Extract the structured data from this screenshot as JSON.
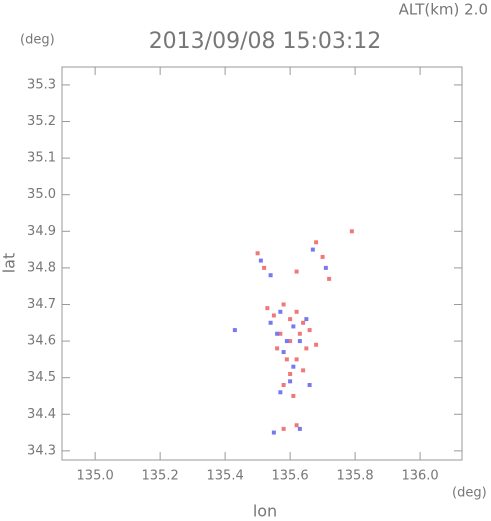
{
  "chart_data": {
    "type": "scatter",
    "title": "2013/09/08 15:03:12",
    "subtitle": "ALT(km) 2.0",
    "y_unit": "(deg)",
    "x_unit": "(deg)",
    "xlabel": "lon",
    "ylabel": "lat",
    "xlim": [
      134.898,
      136.129
    ],
    "ylim": [
      34.275,
      35.349
    ],
    "xticks": [
      {
        "value": 135,
        "label": "135.0"
      },
      135.2,
      135.4,
      135.6,
      135.8,
      {
        "value": 136,
        "label": "136.0"
      }
    ],
    "yticks": [
      34.3,
      34.4,
      34.5,
      34.6,
      34.7,
      34.8,
      34.9,
      {
        "value": 35,
        "label": "35.0"
      },
      35.1,
      35.2,
      35.3
    ],
    "series": [
      {
        "color": "#f07878",
        "x": [
          135.5,
          135.52,
          135.62,
          135.68,
          135.7,
          135.72,
          135.79,
          135.53,
          135.55,
          135.58,
          135.6,
          135.62,
          135.64,
          135.66,
          135.57,
          135.6,
          135.63,
          135.65,
          135.56,
          135.59,
          135.62,
          135.6,
          135.64,
          135.58,
          135.61,
          135.58,
          135.62,
          135.68
        ],
        "y": [
          34.84,
          34.8,
          34.79,
          34.87,
          34.83,
          34.77,
          34.9,
          34.69,
          34.67,
          34.7,
          34.66,
          34.68,
          34.65,
          34.63,
          34.62,
          34.6,
          34.62,
          34.58,
          34.58,
          34.55,
          34.55,
          34.51,
          34.52,
          34.48,
          34.45,
          34.36,
          34.37,
          34.59
        ]
      },
      {
        "color": "#7878f0",
        "x": [
          135.51,
          135.54,
          135.67,
          135.71,
          135.54,
          135.57,
          135.61,
          135.65,
          135.59,
          135.63,
          135.58,
          135.61,
          135.56,
          135.6,
          135.66,
          135.57,
          135.63,
          135.55,
          135.43
        ],
        "y": [
          34.82,
          34.78,
          34.85,
          34.8,
          34.65,
          34.68,
          34.64,
          34.66,
          34.6,
          34.6,
          34.57,
          34.53,
          34.62,
          34.49,
          34.48,
          34.46,
          34.36,
          34.35,
          34.63
        ]
      }
    ]
  }
}
